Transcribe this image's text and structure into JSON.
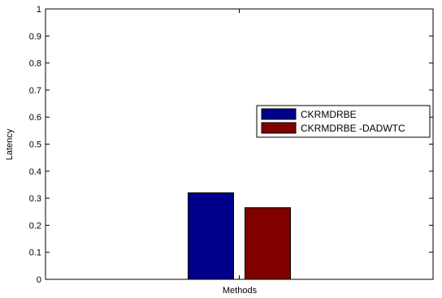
{
  "chart_data": {
    "type": "bar",
    "title": "",
    "xlabel": "Methods",
    "ylabel": "Latency",
    "categories": [
      ""
    ],
    "series": [
      {
        "name": "CKRMDRBE",
        "values": [
          0.32
        ],
        "color": "#00008b"
      },
      {
        "name": "CKRMDRBE -DADWTC",
        "values": [
          0.265
        ],
        "color": "#800000"
      }
    ],
    "ylim": [
      0,
      1
    ],
    "yticks": [
      "0",
      "0.1",
      "0.2",
      "0.3",
      "0.4",
      "0.5",
      "0.6",
      "0.7",
      "0.8",
      "0.9",
      "1"
    ],
    "grid": false,
    "legend_position": "right"
  }
}
